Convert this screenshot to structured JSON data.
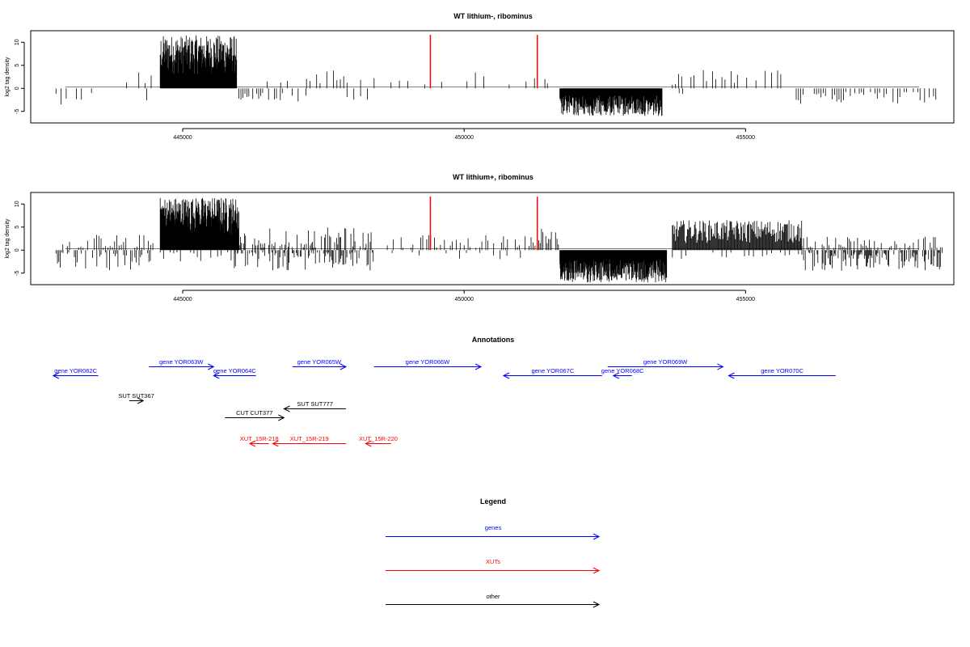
{
  "chart_data": [
    {
      "type": "bar",
      "title": "WT lithium-, ribominus",
      "ylabel": "log2 tag density",
      "xlabel": "",
      "xlim": [
        442300,
        458700
      ],
      "ylim": [
        -7.5,
        12.5
      ],
      "xticks": [
        445000,
        450000,
        455000
      ],
      "yticks": [
        -5,
        0,
        5,
        10
      ],
      "ytick_labels": [
        "-5",
        "0",
        "5",
        "10"
      ],
      "grid": false,
      "baseline": 0,
      "bar_color": "#000000",
      "marker_color": "#ff0000",
      "markers": [
        {
          "x": 449400,
          "y": 11.6
        },
        {
          "x": 451300,
          "y": 11.6
        }
      ],
      "segments": [
        {
          "from": 442750,
          "to": 443400,
          "dir": -1,
          "mode": "sparse",
          "step": 90,
          "lo": 0.8,
          "hi": 3.5
        },
        {
          "from": 444000,
          "to": 444600,
          "dir": 1,
          "mode": "sparse",
          "step": 110,
          "lo": 1,
          "hi": 4
        },
        {
          "from": 444000,
          "to": 444400,
          "dir": -1,
          "mode": "sparse",
          "step": 180,
          "lo": 1,
          "hi": 3
        },
        {
          "from": 444600,
          "to": 445960,
          "dir": 1,
          "mode": "dense",
          "step": 7,
          "lo": 3,
          "hi": 11.5
        },
        {
          "from": 446000,
          "to": 447200,
          "dir": -1,
          "mode": "sparse",
          "step": 35,
          "lo": 0.8,
          "hi": 3.2
        },
        {
          "from": 446500,
          "to": 447200,
          "dir": 1,
          "mode": "sparse",
          "step": 120,
          "lo": 0.8,
          "hi": 2.5
        },
        {
          "from": 447200,
          "to": 448300,
          "dir": 1,
          "mode": "sparse",
          "step": 60,
          "lo": 0.8,
          "hi": 4
        },
        {
          "from": 447800,
          "to": 448300,
          "dir": -1,
          "mode": "sparse",
          "step": 120,
          "lo": 0.5,
          "hi": 2.5
        },
        {
          "from": 448400,
          "to": 451300,
          "dir": 1,
          "mode": "sparse",
          "step": 150,
          "lo": 0.8,
          "hi": 3.5
        },
        {
          "from": 451300,
          "to": 451600,
          "dir": 1,
          "mode": "sparse",
          "step": 45,
          "lo": 1,
          "hi": 3.5
        },
        {
          "from": 451700,
          "to": 453520,
          "dir": -1,
          "mode": "dense",
          "step": 8,
          "lo": 1.5,
          "hi": 6
        },
        {
          "from": 453700,
          "to": 455800,
          "dir": 1,
          "mode": "sparse",
          "step": 55,
          "lo": 0.8,
          "hi": 4.2
        },
        {
          "from": 453700,
          "to": 453900,
          "dir": -1,
          "mode": "sparse",
          "step": 60,
          "lo": 1,
          "hi": 3
        },
        {
          "from": 455900,
          "to": 458500,
          "dir": -1,
          "mode": "sparse",
          "step": 40,
          "lo": 0.8,
          "hi": 3.5
        }
      ]
    },
    {
      "type": "bar",
      "title": "WT lithium+, ribominus",
      "ylabel": "log2 tag density",
      "xlabel": "",
      "xlim": [
        442300,
        458700
      ],
      "ylim": [
        -7.5,
        12.5
      ],
      "xticks": [
        445000,
        450000,
        455000
      ],
      "yticks": [
        -5,
        0,
        5,
        10
      ],
      "ytick_labels": [
        "-5",
        "0",
        "5",
        "10"
      ],
      "grid": false,
      "baseline": 0,
      "bar_color": "#000000",
      "marker_color": "#ff0000",
      "markers": [
        {
          "x": 449400,
          "y": 11.6
        },
        {
          "x": 451300,
          "y": 11.6
        }
      ],
      "segments": [
        {
          "from": 442750,
          "to": 444500,
          "dir": -1,
          "mode": "sparse",
          "step": 25,
          "lo": 0.5,
          "hi": 4.5
        },
        {
          "from": 442750,
          "to": 444600,
          "dir": 1,
          "mode": "sparse",
          "step": 40,
          "lo": 0.5,
          "hi": 3.5
        },
        {
          "from": 444600,
          "to": 446000,
          "dir": 1,
          "mode": "dense",
          "step": 6,
          "lo": 3,
          "hi": 11.5
        },
        {
          "from": 444600,
          "to": 446000,
          "dir": -1,
          "mode": "sparse",
          "step": 60,
          "lo": 0.5,
          "hi": 2.5
        },
        {
          "from": 445900,
          "to": 448400,
          "dir": -1,
          "mode": "sparse",
          "step": 18,
          "lo": 0.5,
          "hi": 4.5
        },
        {
          "from": 445900,
          "to": 448400,
          "dir": 1,
          "mode": "sparse",
          "step": 18,
          "lo": 0.5,
          "hi": 5
        },
        {
          "from": 448600,
          "to": 451300,
          "dir": 1,
          "mode": "sparse",
          "step": 35,
          "lo": 0.5,
          "hi": 3.5
        },
        {
          "from": 448600,
          "to": 451300,
          "dir": -1,
          "mode": "sparse",
          "step": 120,
          "lo": 0.5,
          "hi": 2
        },
        {
          "from": 451300,
          "to": 451700,
          "dir": 1,
          "mode": "sparse",
          "step": 25,
          "lo": 1,
          "hi": 5
        },
        {
          "from": 451700,
          "to": 453600,
          "dir": -1,
          "mode": "dense",
          "step": 7,
          "lo": 2,
          "hi": 7
        },
        {
          "from": 453700,
          "to": 456000,
          "dir": 1,
          "mode": "dense",
          "step": 14,
          "lo": 1.5,
          "hi": 6.5
        },
        {
          "from": 453700,
          "to": 456000,
          "dir": -1,
          "mode": "sparse",
          "step": 80,
          "lo": 0.5,
          "hi": 2
        },
        {
          "from": 456000,
          "to": 458500,
          "dir": -1,
          "mode": "sparse",
          "step": 15,
          "lo": 0.5,
          "hi": 4.5
        },
        {
          "from": 456000,
          "to": 458500,
          "dir": 1,
          "mode": "sparse",
          "step": 30,
          "lo": 0.5,
          "hi": 3
        }
      ]
    }
  ],
  "annotations": {
    "title": "Annotations",
    "xlim": [
      442300,
      458700
    ],
    "features": [
      {
        "label": "gene YOR062C",
        "type": "gene",
        "start": 442700,
        "end": 443500,
        "strand": "-",
        "row": 0
      },
      {
        "label": "gene YOR063W",
        "type": "gene",
        "start": 444400,
        "end": 445550,
        "strand": "+",
        "row": -1
      },
      {
        "label": "gene YOR064C",
        "type": "gene",
        "start": 445550,
        "end": 446300,
        "strand": "-",
        "row": 0
      },
      {
        "label": "gene YOR065W",
        "type": "gene",
        "start": 446950,
        "end": 447900,
        "strand": "+",
        "row": -1
      },
      {
        "label": "gene YOR066W",
        "type": "gene",
        "start": 448400,
        "end": 450300,
        "strand": "+",
        "row": -1
      },
      {
        "label": "gene YOR067C",
        "type": "gene",
        "start": 450700,
        "end": 452450,
        "strand": "-",
        "row": 0
      },
      {
        "label": "gene YOR068C",
        "type": "gene",
        "start": 452650,
        "end": 452980,
        "strand": "-",
        "row": 0
      },
      {
        "label": "gene YOR069W",
        "type": "gene",
        "start": 452550,
        "end": 454600,
        "strand": "+",
        "row": -1
      },
      {
        "label": "gene YOR070C",
        "type": "gene",
        "start": 454700,
        "end": 456600,
        "strand": "-",
        "row": 0
      },
      {
        "label": "SUT SUT367",
        "type": "other",
        "start": 444050,
        "end": 444300,
        "strand": "+",
        "row": 2
      },
      {
        "label": "SUT SUT777",
        "type": "other",
        "start": 446800,
        "end": 447900,
        "strand": "-",
        "row": 3
      },
      {
        "label": "CUT CUT377",
        "type": "other",
        "start": 445750,
        "end": 446800,
        "strand": "+",
        "row": 4
      },
      {
        "label": "XUT_15R-218",
        "type": "xut",
        "start": 446190,
        "end": 446530,
        "strand": "-",
        "row": 5
      },
      {
        "label": "XUT_15R-219",
        "type": "xut",
        "start": 446600,
        "end": 447900,
        "strand": "-",
        "row": 5
      },
      {
        "label": "XUT_15R-220",
        "type": "xut",
        "start": 448250,
        "end": 448700,
        "strand": "-",
        "row": 5
      }
    ]
  },
  "legend": {
    "title": "Legend",
    "items": [
      {
        "label": "genes",
        "color": "#0000ff"
      },
      {
        "label": "XUTs",
        "color": "#ff0000"
      },
      {
        "label": "other",
        "color": "#000000"
      }
    ]
  },
  "colors": {
    "gene": "#0000ff",
    "xut": "#ff0000",
    "other": "#000000",
    "baseline": "#808080"
  }
}
